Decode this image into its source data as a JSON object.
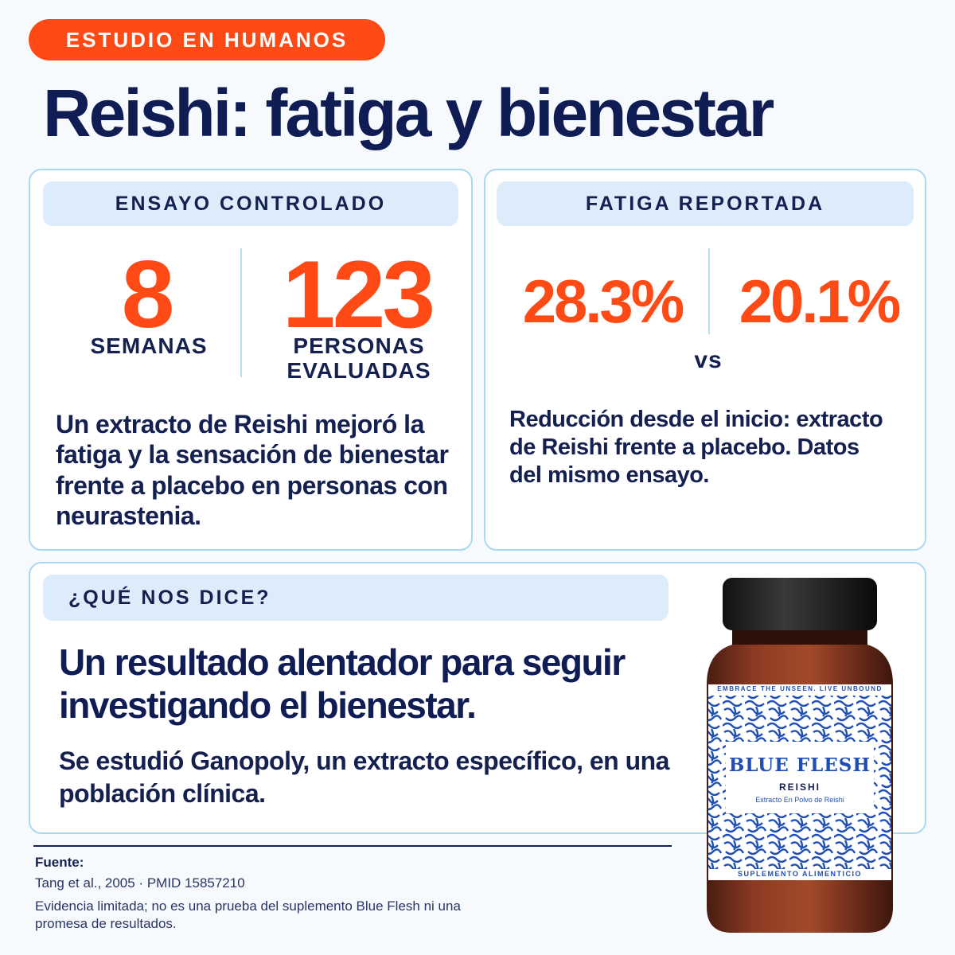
{
  "badge": "ESTUDIO EN HUMANOS",
  "title": "Reishi: fatiga y bienestar",
  "left_card": {
    "header": "ENSAYO CONTROLADO",
    "stat1_value": "8",
    "stat1_label": "SEMANAS",
    "stat2_value": "123",
    "stat2_label_line1": "PERSONAS",
    "stat2_label_line2": "EVALUADAS",
    "description": "Un extracto de Reishi mejoró la fatiga y la sensación de bienestar frente a placebo en personas con neurastenia."
  },
  "right_card": {
    "header": "FATIGA REPORTADA",
    "value1": "28.3%",
    "value2": "20.1%",
    "vs": "vs",
    "description": "Reducción desde el inicio: extracto de Reishi frente a placebo. Datos del mismo ensayo."
  },
  "bottom_card": {
    "header": "¿QUÉ NOS DICE?",
    "headline": "Un resultado alentador para seguir investigando el bienestar.",
    "sub": "Se estudió Ganopoly, un extracto específico, en una población clínica."
  },
  "source": {
    "label": "Fuente:",
    "citation": "Tang et al., 2005 · PMID 15857210",
    "disclaimer": "Evidencia limitada; no es una prueba del suplemento Blue Flesh ni una promesa de resultados."
  },
  "product": {
    "band_text": "EMBRACE THE UNSEEN. LIVE UNBOUND",
    "brand": "BLUE FLESH",
    "product_name": "REISHI",
    "product_desc": "Extracto En Polvo de Reishi",
    "footer_text": "SUPLEMENTO ALIMENTICIO"
  },
  "colors": {
    "accent": "#ff4a16",
    "navy": "#101d55",
    "card_border": "#a9d8f1",
    "header_bg": "#dcecfa",
    "label_blue": "#1f4fb5"
  }
}
